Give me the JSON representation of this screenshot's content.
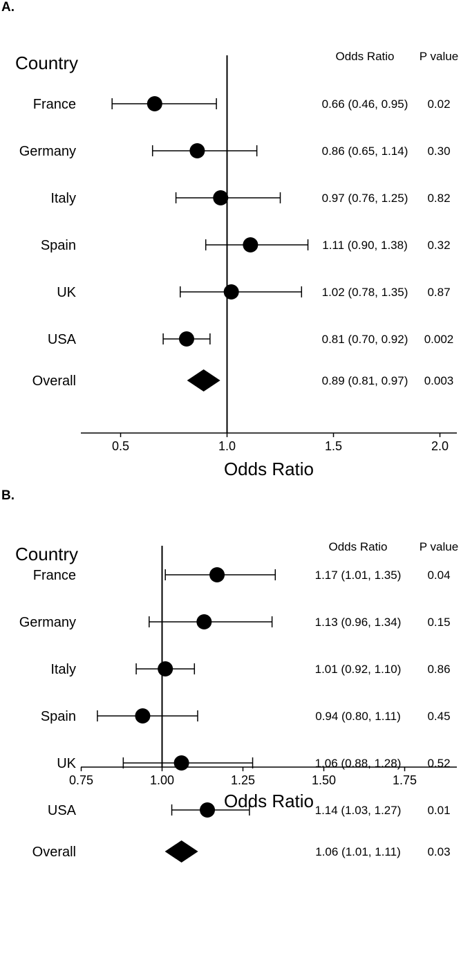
{
  "panels": [
    {
      "label": "A.",
      "column_headers": {
        "group": "Country",
        "estimate": "Odds Ratio",
        "p": "P value"
      },
      "rows": [
        {
          "name": "France",
          "or": 0.66,
          "lo": 0.46,
          "hi": 0.95,
          "text": "0.66 (0.46, 0.95)",
          "p": "0.02"
        },
        {
          "name": "Germany",
          "or": 0.86,
          "lo": 0.65,
          "hi": 1.14,
          "text": "0.86 (0.65, 1.14)",
          "p": "0.30"
        },
        {
          "name": "Italy",
          "or": 0.97,
          "lo": 0.76,
          "hi": 1.25,
          "text": "0.97 (0.76, 1.25)",
          "p": "0.82"
        },
        {
          "name": "Spain",
          "or": 1.11,
          "lo": 0.9,
          "hi": 1.38,
          "text": "1.11 (0.90, 1.38)",
          "p": "0.32"
        },
        {
          "name": "UK",
          "or": 1.02,
          "lo": 0.78,
          "hi": 1.35,
          "text": "1.02 (0.78, 1.35)",
          "p": "0.87"
        },
        {
          "name": "USA",
          "or": 0.81,
          "lo": 0.7,
          "hi": 0.92,
          "text": "0.81 (0.70, 0.92)",
          "p": "0.002"
        }
      ],
      "overall": {
        "name": "Overall",
        "or": 0.89,
        "lo": 0.81,
        "hi": 0.97,
        "text": "0.89 (0.81, 0.97)",
        "p": "0.003"
      },
      "xlabel": "Odds Ratio",
      "xticks": [
        0.5,
        1.0,
        1.5,
        2.0
      ],
      "xtick_labels": [
        "0.5",
        "1.0",
        "1.5",
        "2.0"
      ],
      "xlim": [
        0.35,
        2.05
      ],
      "reference": 1.0
    },
    {
      "label": "B.",
      "column_headers": {
        "group": "Country",
        "estimate": "Odds Ratio",
        "p": "P value"
      },
      "rows": [
        {
          "name": "France",
          "or": 1.17,
          "lo": 1.01,
          "hi": 1.35,
          "text": "1.17 (1.01, 1.35)",
          "p": "0.04"
        },
        {
          "name": "Germany",
          "or": 1.13,
          "lo": 0.96,
          "hi": 1.34,
          "text": "1.13 (0.96, 1.34)",
          "p": "0.15"
        },
        {
          "name": "Italy",
          "or": 1.01,
          "lo": 0.92,
          "hi": 1.1,
          "text": "1.01 (0.92, 1.10)",
          "p": "0.86"
        },
        {
          "name": "Spain",
          "or": 0.94,
          "lo": 0.8,
          "hi": 1.11,
          "text": "0.94 (0.80, 1.11)",
          "p": "0.45"
        },
        {
          "name": "UK",
          "or": 1.06,
          "lo": 0.88,
          "hi": 1.28,
          "text": "1.06 (0.88, 1.28)",
          "p": "0.52"
        },
        {
          "name": "USA",
          "or": 1.14,
          "lo": 1.03,
          "hi": 1.27,
          "text": "1.14 (1.03, 1.27)",
          "p": "0.01"
        }
      ],
      "overall": {
        "name": "Overall",
        "or": 1.06,
        "lo": 1.01,
        "hi": 1.11,
        "text": "1.06 (1.01, 1.11)",
        "p": "0.03"
      },
      "xlabel": "Odds Ratio",
      "xticks": [
        0.75,
        1.0,
        1.25,
        1.5,
        1.75
      ],
      "xtick_labels": [
        "0.75",
        "1.00",
        "1.25",
        "1.50",
        "1.75"
      ],
      "xlim": [
        0.75,
        1.9
      ],
      "reference": 1.0
    }
  ],
  "chart_data": [
    {
      "type": "scatter",
      "subtype": "forest",
      "categories": [
        "France",
        "Germany",
        "Italy",
        "Spain",
        "UK",
        "USA",
        "Overall"
      ],
      "series": [
        {
          "name": "Odds Ratio",
          "values": [
            0.66,
            0.86,
            0.97,
            1.11,
            1.02,
            0.81,
            0.89
          ]
        }
      ],
      "ci_lower": [
        0.46,
        0.65,
        0.76,
        0.9,
        0.78,
        0.7,
        0.81
      ],
      "ci_upper": [
        0.95,
        1.14,
        1.25,
        1.38,
        1.35,
        0.92,
        0.97
      ],
      "p_values": [
        "0.02",
        "0.30",
        "0.82",
        "0.32",
        "0.87",
        "0.002",
        "0.003"
      ],
      "title": "",
      "xlabel": "Odds Ratio",
      "ylabel": "Country",
      "xlim": [
        0.35,
        2.05
      ],
      "reference_line": 1.0,
      "grid": false
    },
    {
      "type": "scatter",
      "subtype": "forest",
      "categories": [
        "France",
        "Germany",
        "Italy",
        "Spain",
        "UK",
        "USA",
        "Overall"
      ],
      "series": [
        {
          "name": "Odds Ratio",
          "values": [
            1.17,
            1.13,
            1.01,
            0.94,
            1.06,
            1.14,
            1.06
          ]
        }
      ],
      "ci_lower": [
        1.01,
        0.96,
        0.92,
        0.8,
        0.88,
        1.03,
        1.01
      ],
      "ci_upper": [
        1.35,
        1.34,
        1.1,
        1.11,
        1.28,
        1.27,
        1.11
      ],
      "p_values": [
        "0.04",
        "0.15",
        "0.86",
        "0.45",
        "0.52",
        "0.01",
        "0.03"
      ],
      "title": "",
      "xlabel": "Odds Ratio",
      "ylabel": "Country",
      "xlim": [
        0.75,
        1.9
      ],
      "reference_line": 1.0,
      "grid": false
    }
  ]
}
